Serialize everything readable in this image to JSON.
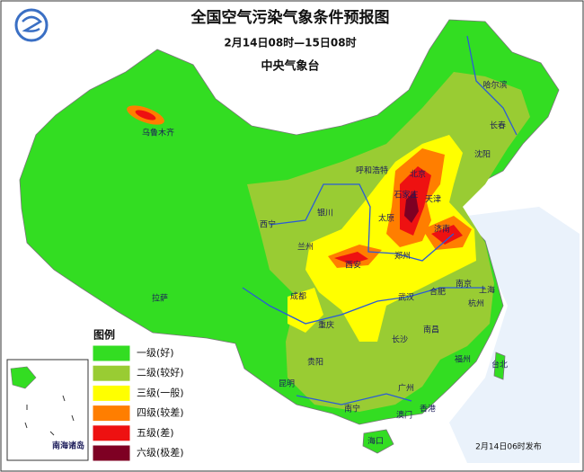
{
  "header": {
    "title": "全国空气污染气象条件预报图",
    "period": "2月14日08时—15日08时",
    "issuer": "中央气象台"
  },
  "legend": {
    "title": "图例",
    "items": [
      {
        "label": "一级(好)",
        "color": "#33dd22"
      },
      {
        "label": "二级(较好)",
        "color": "#99cc33"
      },
      {
        "label": "三级(一般)",
        "color": "#ffff00"
      },
      {
        "label": "四级(较差)",
        "color": "#ff7e00"
      },
      {
        "label": "五级(差)",
        "color": "#ee1111"
      },
      {
        "label": "六级(极差)",
        "color": "#7e0023"
      }
    ]
  },
  "cities": [
    "乌鲁木齐",
    "哈尔滨",
    "长春",
    "沈阳",
    "呼和浩特",
    "北京",
    "天津",
    "石家庄",
    "太原",
    "济南",
    "银川",
    "西宁",
    "兰州",
    "西安",
    "郑州",
    "南京",
    "上海",
    "合肥",
    "武汉",
    "杭州",
    "成都",
    "拉萨",
    "重庆",
    "长沙",
    "南昌",
    "福州",
    "贵阳",
    "台北",
    "昆明",
    "广州",
    "南宁",
    "香港",
    "澳门",
    "海口"
  ],
  "inset": {
    "label": "南海诸岛"
  },
  "footer": {
    "release": "2月14日06时发布"
  }
}
